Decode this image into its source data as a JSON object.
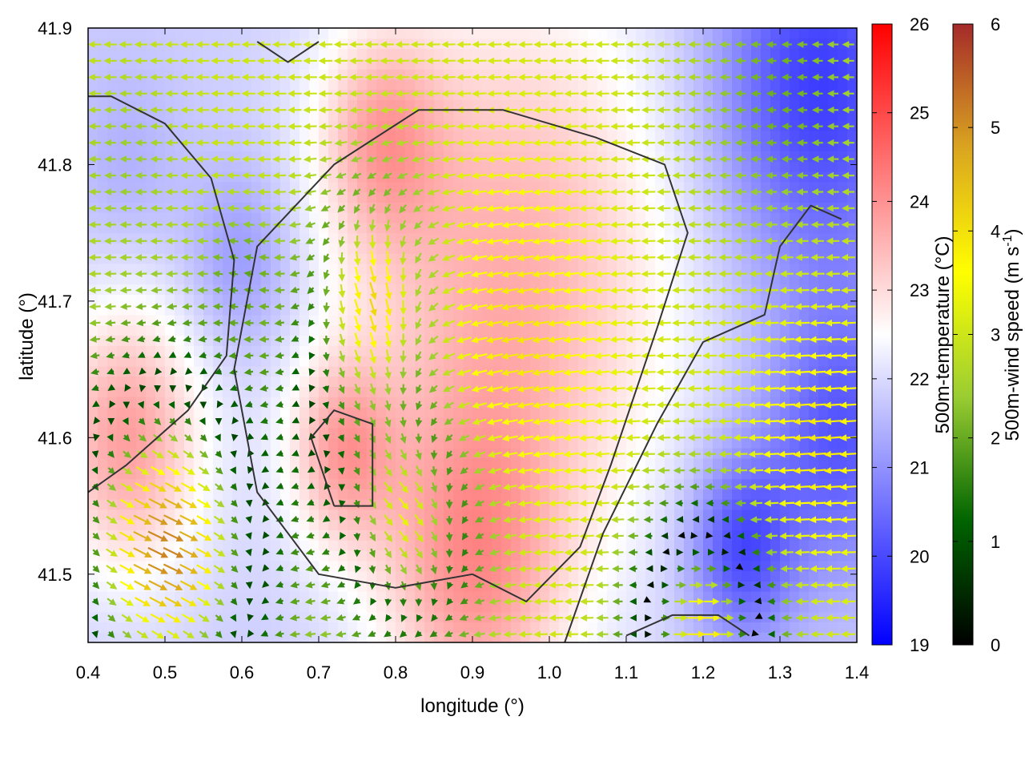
{
  "chart_data": {
    "type": "heatmap",
    "subtype": "vector-field-with-contours",
    "title": "",
    "xlabel": "longitude (°)",
    "ylabel": "latitude (°)",
    "xlim": [
      0.4,
      1.4
    ],
    "ylim": [
      41.45,
      41.9
    ],
    "x_ticks": [
      "0.4",
      "0.5",
      "0.6",
      "0.7",
      "0.8",
      "0.9",
      "1.0",
      "1.1",
      "1.2",
      "1.3",
      "1.4"
    ],
    "y_ticks": [
      "41.5",
      "41.6",
      "41.7",
      "41.8",
      "41.9"
    ],
    "grid": false,
    "colorbars": [
      {
        "label": "500m-temperature (°C)",
        "range": [
          19,
          26
        ],
        "ticks": [
          "19",
          "20",
          "21",
          "22",
          "23",
          "24",
          "25",
          "26"
        ],
        "colors": [
          "#0000ff",
          "#ffffff",
          "#ff0000"
        ]
      },
      {
        "label_main": "500m-wind speed (m s",
        "label_sup": "-1",
        "label_end": ")",
        "range": [
          0,
          6
        ],
        "ticks": [
          "0",
          "1",
          "2",
          "3",
          "4",
          "5",
          "6"
        ],
        "colors": [
          "#000000",
          "#006400",
          "#9acd32",
          "#ffff00",
          "#daa520",
          "#a52a2a"
        ]
      }
    ],
    "temperature_field": {
      "background_c": 21.8,
      "features": [
        {
          "lon": 0.95,
          "lat": 41.72,
          "radius": 0.22,
          "temp_c": 23.6
        },
        {
          "lon": 0.73,
          "lat": 41.59,
          "radius": 0.07,
          "temp_c": 23.4
        },
        {
          "lon": 0.9,
          "lat": 41.5,
          "radius": 0.12,
          "temp_c": 23.5
        },
        {
          "lon": 0.45,
          "lat": 41.6,
          "radius": 0.1,
          "temp_c": 23.8
        },
        {
          "lon": 0.78,
          "lat": 41.82,
          "radius": 0.08,
          "temp_c": 23.2
        },
        {
          "lon": 1.35,
          "lat": 41.86,
          "radius": 0.14,
          "temp_c": 19.8
        },
        {
          "lon": 1.38,
          "lat": 41.6,
          "radius": 0.1,
          "temp_c": 20.2
        },
        {
          "lon": 1.25,
          "lat": 41.52,
          "radius": 0.07,
          "temp_c": 20.0
        },
        {
          "lon": 0.6,
          "lat": 41.73,
          "radius": 0.07,
          "temp_c": 21.0
        },
        {
          "lon": 0.45,
          "lat": 41.8,
          "radius": 0.07,
          "temp_c": 21.4
        }
      ]
    },
    "wind_field": {
      "grid_spacing_deg": [
        0.02,
        0.012
      ],
      "background": {
        "u_ms": -3.0,
        "v_ms": 0.0
      },
      "features": [
        {
          "lon": 0.73,
          "lat": 41.63,
          "radius": 0.07,
          "u_ms": 0.0,
          "v_ms": 0.0,
          "weight": 0.9
        },
        {
          "lon": 0.78,
          "lat": 41.7,
          "radius": 0.08,
          "u_ms": 2.5,
          "v_ms": -5.0,
          "weight": 0.9
        },
        {
          "lon": 0.5,
          "lat": 41.52,
          "radius": 0.12,
          "u_ms": 5.5,
          "v_ms": -2.5,
          "weight": 0.9
        },
        {
          "lon": 0.82,
          "lat": 41.55,
          "radius": 0.09,
          "u_ms": 4.5,
          "v_ms": -3.5,
          "weight": 0.8
        },
        {
          "lon": 0.95,
          "lat": 41.67,
          "radius": 0.14,
          "u_ms": -4.3,
          "v_ms": -1.0,
          "weight": 0.7
        },
        {
          "lon": 1.2,
          "lat": 41.46,
          "radius": 0.08,
          "u_ms": 5.8,
          "v_ms": 0.0,
          "weight": 0.8
        },
        {
          "lon": 1.3,
          "lat": 41.85,
          "radius": 0.12,
          "u_ms": -1.8,
          "v_ms": 0.0,
          "weight": 0.8
        },
        {
          "lon": 0.45,
          "lat": 41.8,
          "radius": 0.08,
          "u_ms": -2.0,
          "v_ms": 0.0,
          "weight": 0.6
        },
        {
          "lon": 0.6,
          "lat": 41.72,
          "radius": 0.05,
          "u_ms": -1.5,
          "v_ms": 0.5,
          "weight": 0.7
        },
        {
          "lon": 1.35,
          "lat": 41.6,
          "radius": 0.1,
          "u_ms": -4.5,
          "v_ms": -0.5,
          "weight": 0.6
        }
      ]
    },
    "contours": [
      [
        [
          0.9,
          41.5
        ],
        [
          0.8,
          41.49
        ],
        [
          0.7,
          41.5
        ],
        [
          0.62,
          41.56
        ],
        [
          0.59,
          41.65
        ],
        [
          0.62,
          41.74
        ],
        [
          0.72,
          41.8
        ],
        [
          0.83,
          41.84
        ],
        [
          0.94,
          41.84
        ],
        [
          1.06,
          41.82
        ],
        [
          1.15,
          41.8
        ],
        [
          1.18,
          41.75
        ],
        [
          1.14,
          41.68
        ],
        [
          1.08,
          41.58
        ],
        [
          1.04,
          41.52
        ],
        [
          0.97,
          41.48
        ],
        [
          0.9,
          41.5
        ]
      ],
      [
        [
          0.72,
          41.55
        ],
        [
          0.77,
          41.55
        ],
        [
          0.77,
          41.61
        ],
        [
          0.72,
          41.62
        ],
        [
          0.69,
          41.6
        ],
        [
          0.72,
          41.55
        ]
      ],
      [
        [
          0.4,
          41.56
        ],
        [
          0.45,
          41.58
        ],
        [
          0.53,
          41.62
        ],
        [
          0.58,
          41.66
        ],
        [
          0.59,
          41.73
        ],
        [
          0.56,
          41.79
        ],
        [
          0.5,
          41.83
        ],
        [
          0.43,
          41.85
        ],
        [
          0.4,
          41.85
        ]
      ],
      [
        [
          1.02,
          41.45
        ],
        [
          1.07,
          41.53
        ],
        [
          1.14,
          41.61
        ],
        [
          1.2,
          41.67
        ],
        [
          1.28,
          41.69
        ],
        [
          1.3,
          41.74
        ],
        [
          1.34,
          41.77
        ],
        [
          1.38,
          41.76
        ]
      ],
      [
        [
          0.62,
          41.89
        ],
        [
          0.66,
          41.875
        ],
        [
          0.7,
          41.89
        ]
      ],
      [
        [
          1.1,
          41.455
        ],
        [
          1.16,
          41.47
        ],
        [
          1.22,
          41.47
        ],
        [
          1.26,
          41.455
        ]
      ]
    ]
  }
}
